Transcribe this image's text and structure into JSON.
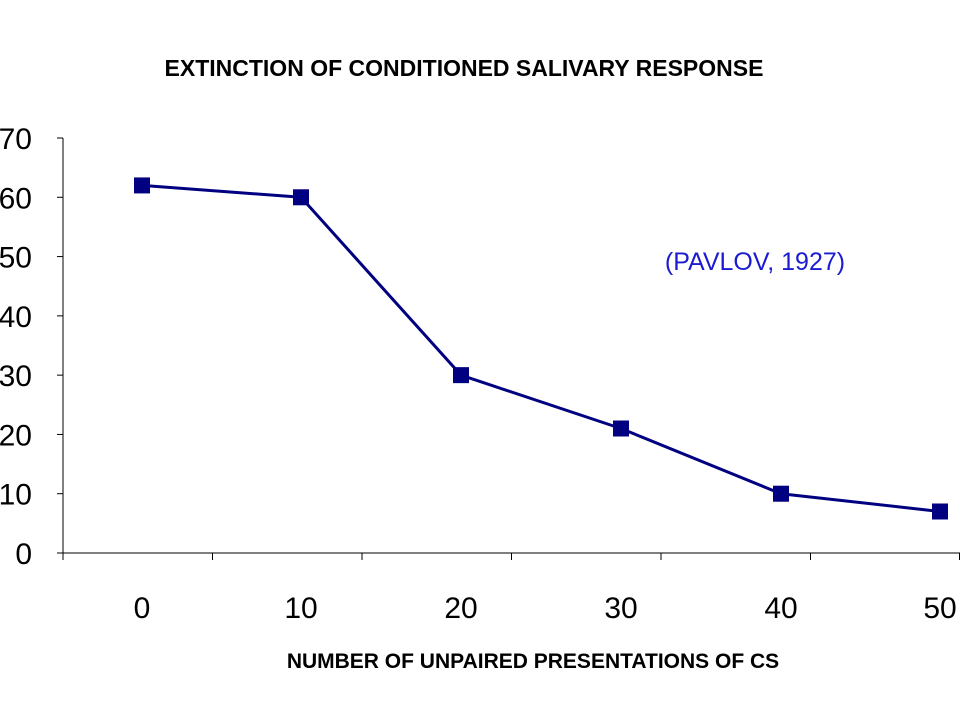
{
  "colors": {
    "series": "#000080",
    "annotation": "#1b1bd1",
    "axis": "#000000"
  },
  "chart_data": {
    "type": "line",
    "title": "EXTINCTION OF CONDITIONED SALIVARY RESPONSE",
    "xlabel": "NUMBER OF UNPAIRED PRESENTATIONS OF CS",
    "ylabel": "",
    "x": [
      0,
      10,
      20,
      30,
      40,
      50
    ],
    "categories": [
      "0",
      "10",
      "20",
      "30",
      "40",
      "50"
    ],
    "series": [
      {
        "values": [
          62,
          60,
          30,
          21,
          10,
          7
        ],
        "marker": "square"
      }
    ],
    "ylim": [
      0,
      70
    ],
    "yticks": [
      "0",
      "10",
      "20",
      "30",
      "40",
      "50",
      "60",
      "70"
    ],
    "grid": false,
    "legend": "none",
    "annotation": "(PAVLOV, 1927)"
  }
}
